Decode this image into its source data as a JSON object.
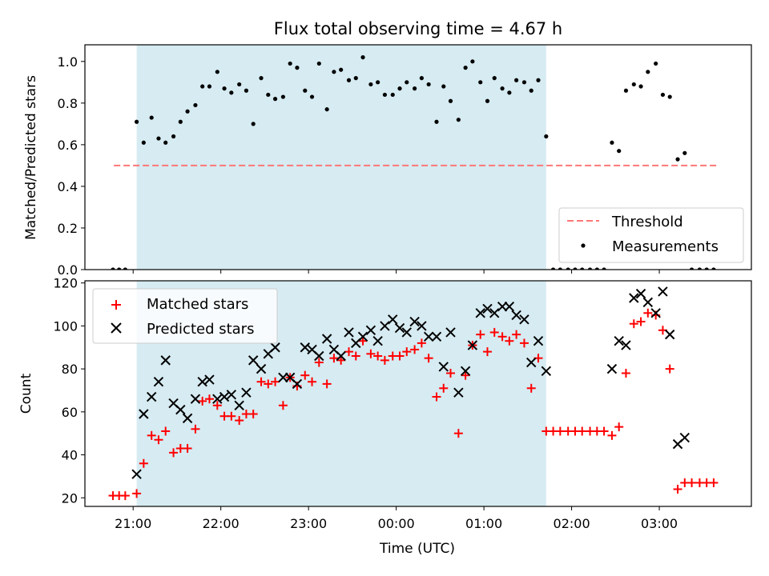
{
  "chart_data": [
    {
      "type": "scatter",
      "title": "Flux total observing time = 4.67 h",
      "ylabel": "Matched/Predicted stars",
      "xlabel": "",
      "xlim": [
        -0.55,
        7.05
      ],
      "ylim": [
        0,
        1.08
      ],
      "yticks": [
        "0.0",
        "0.2",
        "0.4",
        "0.6",
        "0.8",
        "1.0"
      ],
      "shaded_region": [
        0.04,
        4.71
      ],
      "shade_color": "#add8e6",
      "legend_position": "lower-right",
      "series": [
        {
          "name": "Threshold",
          "kind": "dashed-line",
          "color": "#ff7777",
          "x": [
            -0.22,
            6.67
          ],
          "y": [
            0.5,
            0.5
          ]
        },
        {
          "name": "Measurements",
          "kind": "points",
          "color": "#000000",
          "x": [
            -0.23,
            -0.16,
            -0.09,
            0.04,
            0.12,
            0.21,
            0.29,
            0.37,
            0.46,
            0.54,
            0.62,
            0.71,
            0.79,
            0.87,
            0.96,
            1.04,
            1.12,
            1.21,
            1.29,
            1.37,
            1.46,
            1.54,
            1.62,
            1.71,
            1.79,
            1.87,
            1.96,
            2.04,
            2.12,
            2.21,
            2.29,
            2.37,
            2.46,
            2.54,
            2.62,
            2.71,
            2.79,
            2.87,
            2.96,
            3.04,
            3.12,
            3.21,
            3.29,
            3.37,
            3.46,
            3.54,
            3.62,
            3.71,
            3.79,
            3.87,
            3.96,
            4.04,
            4.12,
            4.21,
            4.29,
            4.37,
            4.46,
            4.54,
            4.62,
            4.71,
            4.79,
            4.87,
            4.96,
            5.04,
            5.12,
            5.21,
            5.29,
            5.37,
            5.46,
            5.54,
            5.62,
            5.71,
            5.79,
            5.87,
            5.96,
            6.04,
            6.12,
            6.21,
            6.29,
            6.37,
            6.46,
            6.54,
            6.62
          ],
          "y": [
            0.0,
            0.0,
            0.0,
            0.71,
            0.61,
            0.73,
            0.63,
            0.61,
            0.64,
            0.71,
            0.76,
            0.79,
            0.88,
            0.88,
            0.95,
            0.87,
            0.85,
            0.89,
            0.86,
            0.7,
            0.92,
            0.84,
            0.82,
            0.83,
            0.99,
            0.97,
            0.86,
            0.83,
            0.99,
            0.77,
            0.95,
            0.96,
            0.91,
            0.92,
            1.02,
            0.89,
            0.9,
            0.84,
            0.84,
            0.87,
            0.9,
            0.87,
            0.92,
            0.89,
            0.71,
            0.88,
            0.81,
            0.72,
            0.97,
            1.0,
            0.9,
            0.81,
            0.92,
            0.87,
            0.85,
            0.91,
            0.9,
            0.86,
            0.91,
            0.64,
            0.0,
            0.0,
            0.0,
            0.0,
            0.0,
            0.0,
            0.0,
            0.0,
            0.61,
            0.57,
            0.86,
            0.89,
            0.88,
            0.95,
            0.99,
            0.84,
            0.83,
            0.53,
            0.56,
            0.0,
            0.0,
            0.0,
            0.0
          ]
        }
      ]
    },
    {
      "type": "scatter",
      "title": "",
      "ylabel": "Count",
      "xlabel": "Time (UTC)",
      "xlim": [
        -0.55,
        7.05
      ],
      "ylim": [
        16,
        121
      ],
      "yticks": [
        "20",
        "40",
        "60",
        "80",
        "100",
        "120"
      ],
      "xtick_values": [
        0,
        1,
        2,
        3,
        4,
        5,
        6
      ],
      "xticks": [
        "21:00",
        "22:00",
        "23:00",
        "00:00",
        "01:00",
        "02:00",
        "03:00"
      ],
      "shaded_region": [
        0.04,
        4.71
      ],
      "shade_color": "#add8e6",
      "legend_position": "upper-left",
      "series": [
        {
          "name": "Matched stars",
          "kind": "plus",
          "color": "#ff0000",
          "x": [
            -0.23,
            -0.16,
            -0.09,
            0.04,
            0.12,
            0.21,
            0.29,
            0.37,
            0.46,
            0.54,
            0.62,
            0.71,
            0.79,
            0.87,
            0.96,
            1.04,
            1.12,
            1.21,
            1.29,
            1.37,
            1.46,
            1.54,
            1.62,
            1.71,
            1.79,
            1.87,
            1.96,
            2.04,
            2.12,
            2.21,
            2.29,
            2.37,
            2.46,
            2.54,
            2.62,
            2.71,
            2.79,
            2.87,
            2.96,
            3.04,
            3.12,
            3.21,
            3.29,
            3.37,
            3.46,
            3.54,
            3.62,
            3.71,
            3.79,
            3.87,
            3.96,
            4.04,
            4.12,
            4.21,
            4.29,
            4.37,
            4.46,
            4.54,
            4.62,
            4.71,
            4.79,
            4.87,
            4.96,
            5.04,
            5.12,
            5.21,
            5.29,
            5.37,
            5.46,
            5.54,
            5.62,
            5.71,
            5.79,
            5.87,
            5.96,
            6.04,
            6.12,
            6.21,
            6.29,
            6.37,
            6.46,
            6.54,
            6.62
          ],
          "y": [
            21,
            21,
            21,
            22,
            36,
            49,
            47,
            51,
            41,
            43,
            43,
            52,
            65,
            66,
            63,
            58,
            58,
            56,
            59,
            59,
            74,
            73,
            74,
            63,
            76,
            72,
            77,
            74,
            83,
            73,
            85,
            84,
            88,
            86,
            93,
            87,
            86,
            84,
            86,
            86,
            88,
            89,
            92,
            85,
            67,
            71,
            78,
            50,
            77,
            91,
            96,
            88,
            97,
            95,
            93,
            96,
            92,
            71,
            85,
            51,
            51,
            51,
            51,
            51,
            51,
            51,
            51,
            51,
            49,
            53,
            78,
            101,
            102,
            106,
            105,
            98,
            80,
            24,
            27,
            27,
            27,
            27,
            27
          ]
        },
        {
          "name": "Predicted stars",
          "kind": "cross",
          "color": "#000000",
          "x": [
            0.04,
            0.12,
            0.21,
            0.29,
            0.37,
            0.46,
            0.54,
            0.62,
            0.71,
            0.79,
            0.87,
            0.96,
            1.04,
            1.12,
            1.21,
            1.29,
            1.37,
            1.46,
            1.54,
            1.62,
            1.71,
            1.79,
            1.87,
            1.96,
            2.04,
            2.12,
            2.21,
            2.29,
            2.37,
            2.46,
            2.54,
            2.62,
            2.71,
            2.79,
            2.87,
            2.96,
            3.04,
            3.12,
            3.21,
            3.29,
            3.37,
            3.46,
            3.54,
            3.62,
            3.71,
            3.79,
            3.87,
            3.96,
            4.04,
            4.12,
            4.21,
            4.29,
            4.37,
            4.46,
            4.54,
            4.62,
            4.71,
            5.46,
            5.54,
            5.62,
            5.71,
            5.79,
            5.87,
            5.96,
            6.04,
            6.12,
            6.21,
            6.29
          ],
          "y": [
            31,
            59,
            67,
            74,
            84,
            64,
            61,
            57,
            66,
            74,
            75,
            66,
            67,
            68,
            63,
            69,
            84,
            80,
            87,
            90,
            76,
            76,
            73,
            90,
            89,
            86,
            94,
            89,
            86,
            97,
            92,
            95,
            98,
            93,
            100,
            103,
            99,
            97,
            102,
            100,
            95,
            95,
            81,
            97,
            69,
            79,
            91,
            106,
            108,
            106,
            109,
            109,
            105,
            103,
            83,
            93,
            79,
            80,
            93,
            91,
            113,
            115,
            111,
            106,
            116,
            96,
            45,
            48
          ]
        }
      ]
    }
  ]
}
